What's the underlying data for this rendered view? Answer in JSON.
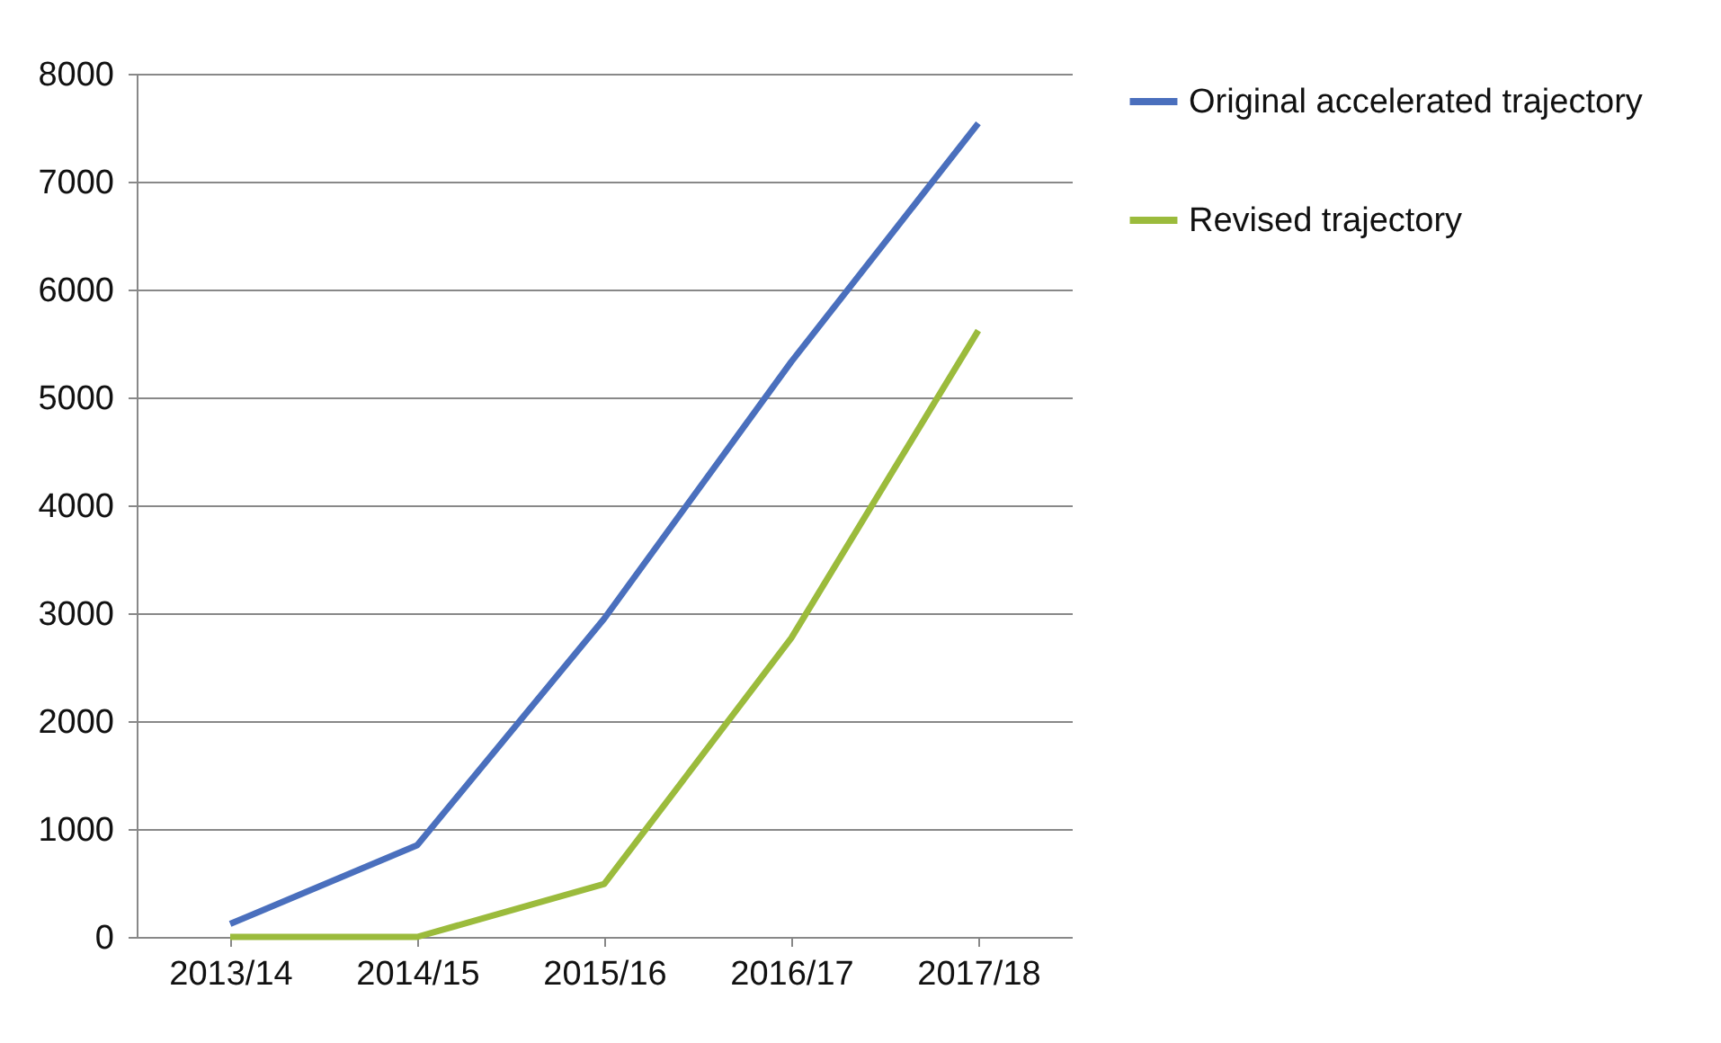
{
  "chart_data": {
    "type": "line",
    "categories": [
      "2013/14",
      "2014/15",
      "2015/16",
      "2016/17",
      "2017/18"
    ],
    "series": [
      {
        "name": "Original accelerated trajectory",
        "color": "#4a6fbd",
        "values": [
          120,
          850,
          2950,
          5330,
          7540
        ]
      },
      {
        "name": "Revised trajectory",
        "color": "#9bbb3c",
        "values": [
          0,
          0,
          490,
          2770,
          5620
        ]
      }
    ],
    "ylim": [
      0,
      8000
    ],
    "yticks": [
      0,
      1000,
      2000,
      3000,
      4000,
      5000,
      6000,
      7000,
      8000
    ],
    "grid": "y",
    "legend": "right"
  }
}
